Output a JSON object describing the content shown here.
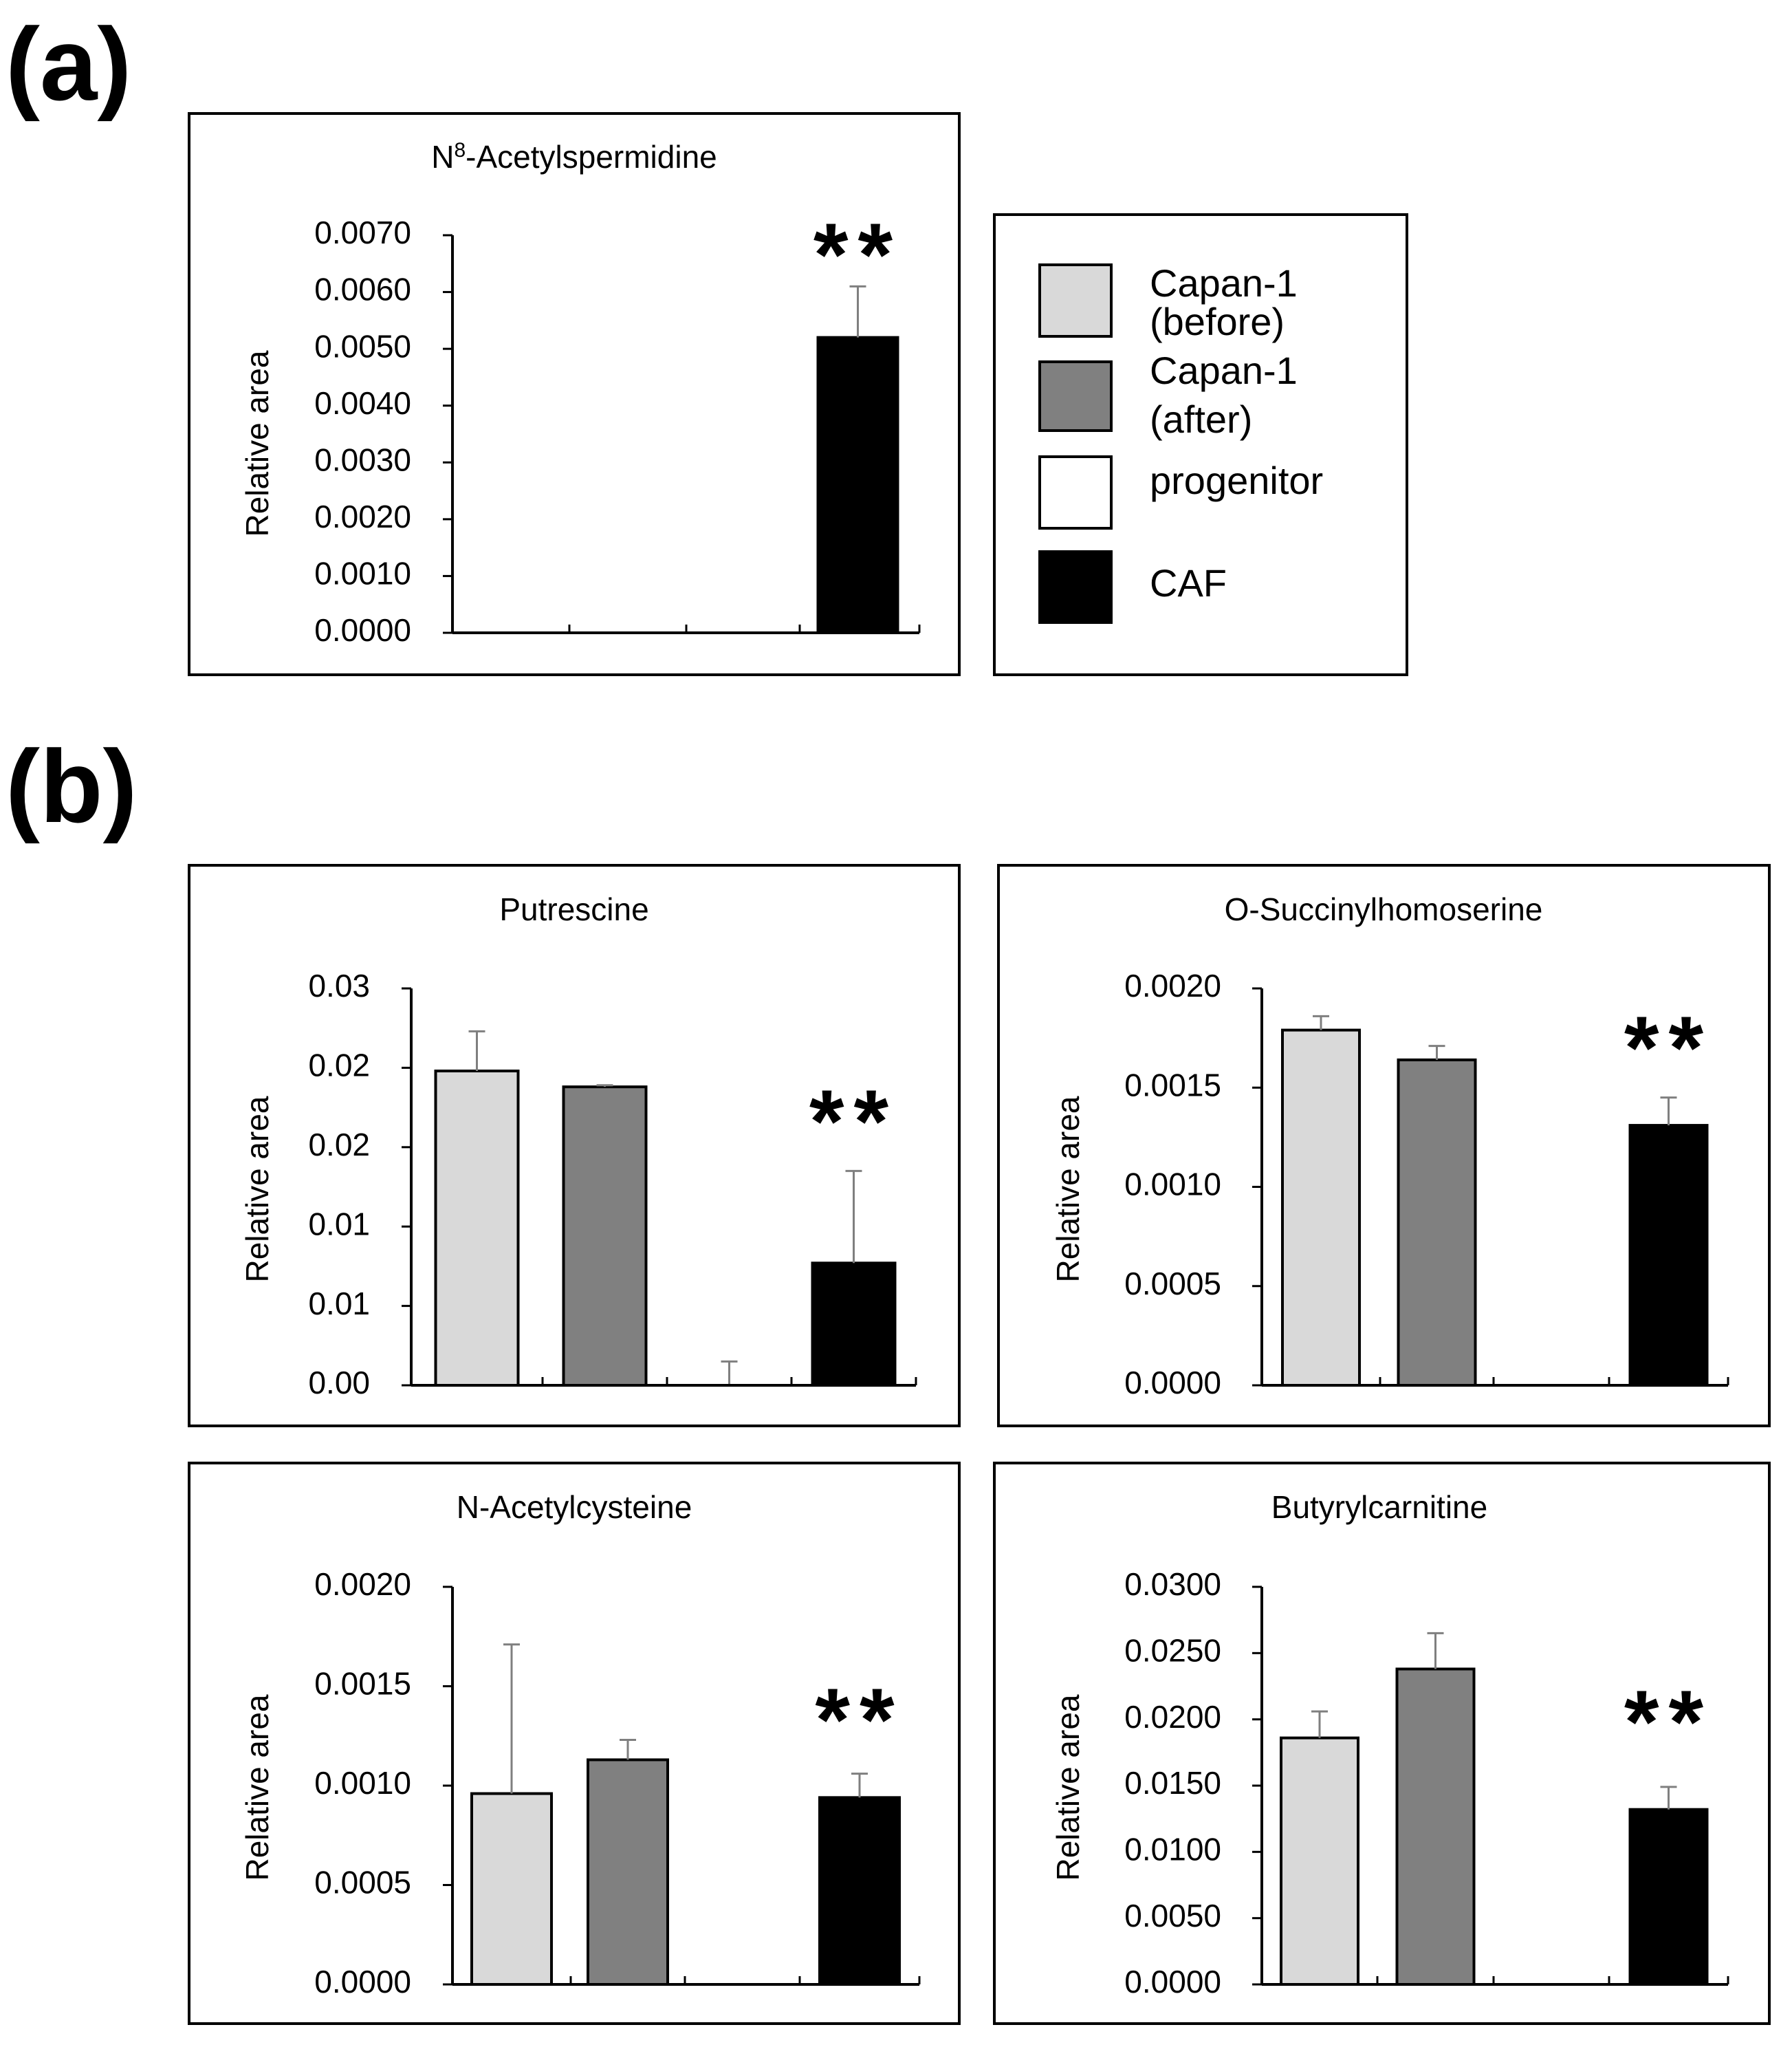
{
  "panel_labels": {
    "a": "(a)",
    "b": "(b)"
  },
  "groups": [
    {
      "name": "Capan-1 (before)",
      "color": "#d9d9d9"
    },
    {
      "name": "Capan-1 (after)",
      "color": "#808080"
    },
    {
      "name": "progenitor",
      "color": "#ffffff"
    },
    {
      "name": "CAF",
      "color": "#000000"
    }
  ],
  "legend": {
    "entries": [
      {
        "line1": "Capan-1",
        "line2": "(before)"
      },
      {
        "line1": "Capan-1",
        "line2": "(after)"
      },
      {
        "line1": "progenitor",
        "line2": ""
      },
      {
        "line1": "CAF",
        "line2": ""
      }
    ]
  },
  "significance_marker": "**",
  "chart_data": [
    {
      "type": "bar",
      "title_main": "N",
      "title_sup": "8",
      "title_rest": "-Acetylspermidine",
      "ylabel": "Relative area",
      "ylim": [
        0,
        0.007
      ],
      "yticks": [
        "0.0000",
        "0.0010",
        "0.0020",
        "0.0030",
        "0.0040",
        "0.0050",
        "0.0060",
        "0.0070"
      ],
      "categories": [
        "Capan-1 (before)",
        "Capan-1 (after)",
        "progenitor",
        "CAF"
      ],
      "values": [
        0,
        0,
        0,
        0.0052
      ],
      "errors": [
        0,
        0,
        0,
        0.0009
      ],
      "significant": [
        false,
        false,
        false,
        true
      ]
    },
    {
      "type": "bar",
      "title": "Putrescine",
      "ylabel": "Relative area",
      "ylim": [
        0,
        0.025
      ],
      "yticks": [
        "0.00",
        "0.01",
        "0.01",
        "0.02",
        "0.02",
        "0.03"
      ],
      "categories": [
        "Capan-1 (before)",
        "Capan-1 (after)",
        "progenitor",
        "CAF"
      ],
      "values": [
        0.0198,
        0.0188,
        0,
        0.0077
      ],
      "errors": [
        0.0025,
        0.0001,
        0.0015,
        0.0058
      ],
      "significant": [
        false,
        false,
        false,
        true
      ]
    },
    {
      "type": "bar",
      "title": "O-Succinylhomoserine",
      "ylabel": "Relative area",
      "ylim": [
        0,
        0.002
      ],
      "yticks": [
        "0.0000",
        "0.0005",
        "0.0010",
        "0.0015",
        "0.0020"
      ],
      "categories": [
        "Capan-1 (before)",
        "Capan-1 (after)",
        "progenitor",
        "CAF"
      ],
      "values": [
        0.00179,
        0.00164,
        0,
        0.00131
      ],
      "errors": [
        7e-05,
        7e-05,
        0,
        0.00014
      ],
      "significant": [
        false,
        false,
        false,
        true
      ]
    },
    {
      "type": "bar",
      "title": "N-Acetylcysteine",
      "ylabel": "Relative area",
      "ylim": [
        0,
        0.002
      ],
      "yticks": [
        "0.0000",
        "0.0005",
        "0.0010",
        "0.0015",
        "0.0020"
      ],
      "categories": [
        "Capan-1 (before)",
        "Capan-1 (after)",
        "progenitor",
        "CAF"
      ],
      "values": [
        0.00096,
        0.00113,
        0,
        0.00094
      ],
      "errors": [
        0.00075,
        0.0001,
        0,
        0.00012
      ],
      "significant": [
        false,
        false,
        false,
        true
      ]
    },
    {
      "type": "bar",
      "title": "Butyrylcarnitine",
      "ylabel": "Relative area",
      "ylim": [
        0,
        0.03
      ],
      "yticks": [
        "0.0000",
        "0.0050",
        "0.0100",
        "0.0150",
        "0.0200",
        "0.0250",
        "0.0300"
      ],
      "categories": [
        "Capan-1 (before)",
        "Capan-1 (after)",
        "progenitor",
        "CAF"
      ],
      "values": [
        0.0186,
        0.0238,
        0,
        0.0132
      ],
      "errors": [
        0.002,
        0.0027,
        0,
        0.0017
      ],
      "significant": [
        false,
        false,
        false,
        true
      ]
    }
  ]
}
